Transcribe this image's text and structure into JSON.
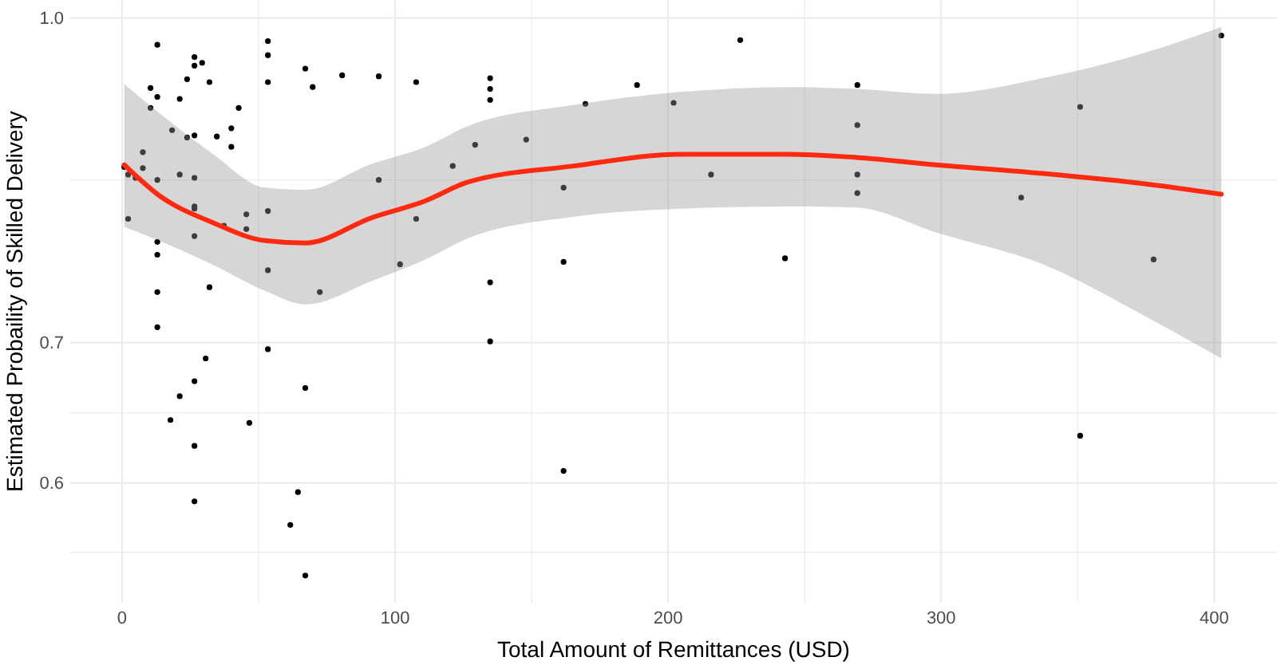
{
  "chart_data": {
    "type": "scatter",
    "xlabel": "Total Amount of Remittances (USD)",
    "ylabel": "Estimated Probaility of Skilled Delivery",
    "log": "y",
    "grid": true,
    "marker": "circle",
    "xlim": [
      -19,
      423
    ],
    "ylim": [
      0.526,
      1.02
    ],
    "xticks": [
      0,
      {
        "value": 50,
        "label": null
      },
      100,
      {
        "value": 150,
        "label": null
      },
      200,
      {
        "value": 250,
        "label": null
      },
      300,
      {
        "value": 350,
        "label": null
      },
      400
    ],
    "yticks": [
      {
        "value": 0.556,
        "label": null
      },
      0.6,
      {
        "value": 0.648,
        "label": null
      },
      0.7,
      {
        "value": 0.837,
        "label": null
      },
      {
        "value": 1,
        "label": "1.0"
      }
    ],
    "series": [
      {
        "color": "#000000",
        "x": [
          12.9,
          26.5,
          26.5,
          29.3,
          53.4,
          53.4,
          53.4,
          67.1,
          69.8,
          80.6,
          94.0,
          107.7,
          23.8,
          32.0,
          10.4,
          12.9,
          10.4,
          21.1,
          42.7,
          18.3,
          23.8,
          26.5,
          34.7,
          40.0,
          40.0,
          7.6,
          7.6,
          0.8,
          2.2,
          4.9,
          12.9,
          21.1,
          26.5,
          94.0,
          2.2,
          26.5,
          26.5,
          37.3,
          45.5,
          45.5,
          53.4,
          26.5,
          107.7,
          12.9,
          12.9,
          53.4,
          101.8,
          32.0,
          12.9,
          72.4,
          12.9,
          53.4,
          30.6,
          26.5,
          21.1,
          67.1,
          17.7,
          46.6,
          26.5,
          26.5,
          64.4,
          61.6,
          67.1,
          134.8,
          134.8,
          134.8,
          226.4,
          188.6,
          169.7,
          202.0,
          148.0,
          129.3,
          121.1,
          215.7,
          161.7,
          134.8,
          161.7,
          242.8,
          134.8,
          161.7,
          269.3,
          269.3,
          269.3,
          269.3,
          350.9,
          329.3,
          377.8,
          350.9,
          402.6
        ],
        "values": [
          0.971,
          0.958,
          0.949,
          0.952,
          0.975,
          0.96,
          0.932,
          0.946,
          0.927,
          0.939,
          0.938,
          0.932,
          0.935,
          0.932,
          0.926,
          0.917,
          0.906,
          0.915,
          0.906,
          0.884,
          0.877,
          0.879,
          0.878,
          0.886,
          0.868,
          0.863,
          0.848,
          0.849,
          0.842,
          0.839,
          0.837,
          0.842,
          0.839,
          0.837,
          0.802,
          0.813,
          0.811,
          0.796,
          0.806,
          0.793,
          0.809,
          0.787,
          0.802,
          0.782,
          0.771,
          0.758,
          0.763,
          0.744,
          0.74,
          0.74,
          0.712,
          0.695,
          0.688,
          0.671,
          0.66,
          0.666,
          0.643,
          0.641,
          0.625,
          0.588,
          0.594,
          0.573,
          0.542,
          0.936,
          0.925,
          0.914,
          0.976,
          0.929,
          0.91,
          0.911,
          0.875,
          0.87,
          0.85,
          0.842,
          0.83,
          0.748,
          0.765,
          0.768,
          0.701,
          0.608,
          0.929,
          0.889,
          0.842,
          0.825,
          0.907,
          0.821,
          0.767,
          0.632,
          0.981
        ]
      },
      {
        "type": "line",
        "marker": "none",
        "color": "#ff2a10",
        "x": [
          0.8,
          13.5,
          32.9,
          52.4,
          67.1,
          91.4,
          111,
          126.6,
          165.6,
          204.6,
          243.6,
          269,
          298.2,
          337.2,
          376.2,
          402.6
        ],
        "values": [
          0.851,
          0.823,
          0.799,
          0.783,
          0.781,
          0.803,
          0.818,
          0.835,
          0.85,
          0.861,
          0.861,
          0.858,
          0.851,
          0.843,
          0.833,
          0.824
        ],
        "upper": [
          0.93,
          0.901,
          0.862,
          0.83,
          0.828,
          0.852,
          0.868,
          0.888,
          0.909,
          0.922,
          0.927,
          0.925,
          0.92,
          0.936,
          0.964,
          0.99
        ],
        "lower": [
          0.795,
          0.783,
          0.763,
          0.741,
          0.73,
          0.749,
          0.767,
          0.785,
          0.804,
          0.811,
          0.813,
          0.812,
          0.79,
          0.763,
          0.719,
          0.688
        ]
      }
    ]
  }
}
